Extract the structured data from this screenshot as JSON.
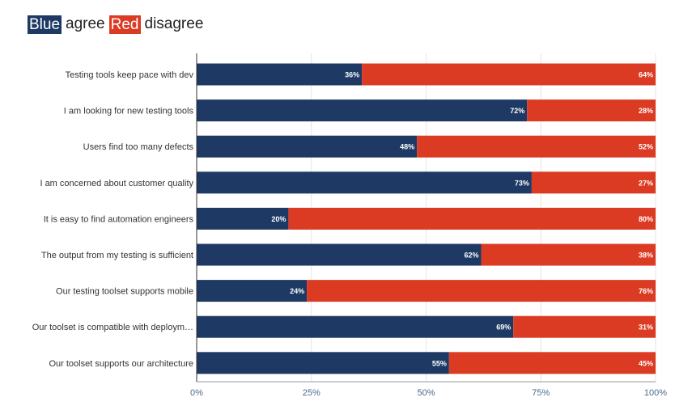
{
  "legend": {
    "agree_key": "Blue",
    "agree_text": "agree",
    "disagree_key": "Red",
    "disagree_text": "disagree"
  },
  "colors": {
    "agree": "#1e3a64",
    "disagree": "#dc3b23"
  },
  "chart_data": {
    "type": "bar",
    "orientation": "horizontal",
    "stacked": true,
    "title": "",
    "xlabel": "",
    "ylabel": "",
    "xlim": [
      0,
      100
    ],
    "x_ticks": [
      0,
      25,
      50,
      75,
      100
    ],
    "x_tick_labels": [
      "0%",
      "25%",
      "50%",
      "75%",
      "100%"
    ],
    "categories": [
      "Testing tools keep pace with dev",
      "I am looking for new testing tools",
      "Users find too many defects",
      "I am concerned about customer quality",
      "It is easy to find automation engineers",
      "The output from my testing is sufficient",
      "Our testing toolset supports mobile",
      "Our toolset is compatible with deploym…",
      "Our toolset supports our architecture"
    ],
    "series": [
      {
        "name": "agree",
        "values": [
          36,
          72,
          48,
          73,
          20,
          62,
          24,
          69,
          55
        ],
        "labels": [
          "36%",
          "72%",
          "48%",
          "73%",
          "20%",
          "62%",
          "24%",
          "69%",
          "55%"
        ]
      },
      {
        "name": "disagree",
        "values": [
          64,
          28,
          52,
          27,
          80,
          38,
          76,
          31,
          45
        ],
        "labels": [
          "64%",
          "28%",
          "52%",
          "27%",
          "80%",
          "38%",
          "76%",
          "31%",
          "45%"
        ]
      }
    ]
  }
}
